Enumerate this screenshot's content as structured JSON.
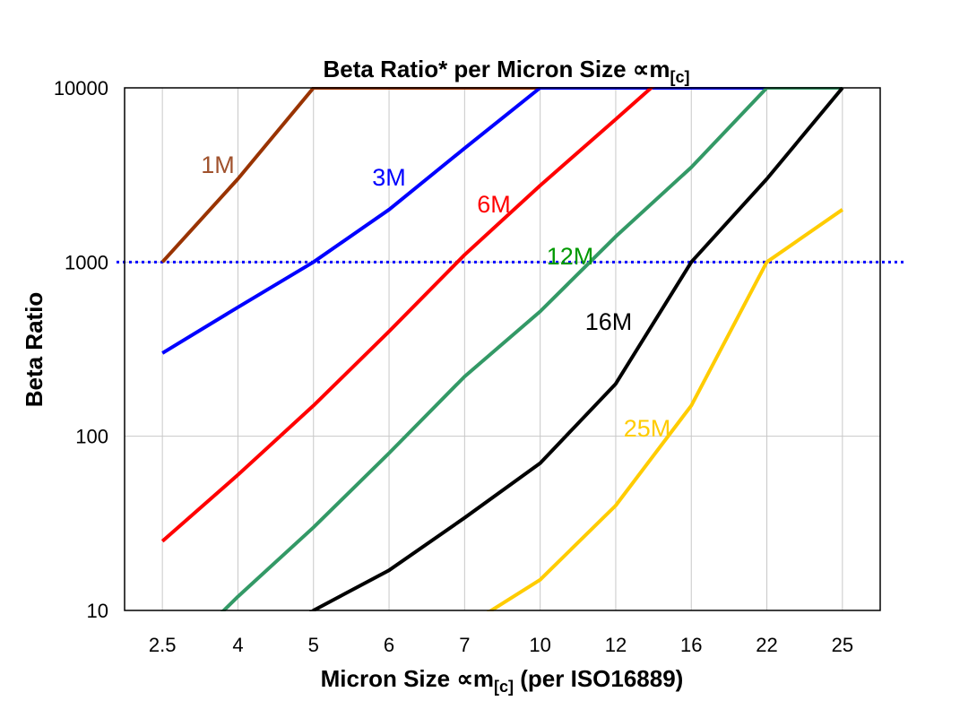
{
  "chart_data": {
    "type": "line",
    "title": "Beta Ratio* per Micron Size ∝m",
    "title_subscript": "[c]",
    "xlabel": "Micron Size ∝m",
    "xlabel_subscript": "[c]",
    "xlabel_suffix": " (per ISO16889)",
    "ylabel": "Beta Ratio",
    "y_scale": "log",
    "ylim": [
      10,
      10000
    ],
    "y_ticks": [
      "10",
      "100",
      "1000",
      "10000"
    ],
    "categories": [
      "2.5",
      "4",
      "5",
      "6",
      "7",
      "10",
      "12",
      "16",
      "22",
      "25"
    ],
    "grid": true,
    "reference_line": {
      "value": 1000,
      "style": "dotted",
      "color": "#0000FF"
    },
    "series": [
      {
        "name": "1M",
        "color": "#993300",
        "label_color": "#A0522D",
        "values": [
          1000,
          3000,
          10000,
          10000,
          10000,
          10000,
          null,
          null,
          null,
          null
        ]
      },
      {
        "name": "3M",
        "color": "#0000FF",
        "label_color": "#0000FF",
        "values": [
          300,
          550,
          1000,
          2000,
          4500,
          10000,
          10000,
          10000,
          10000,
          10000
        ]
      },
      {
        "name": "6M",
        "color": "#FF0000",
        "label_color": "#FF0000",
        "values": [
          25,
          60,
          150,
          400,
          1100,
          2750,
          6600,
          16000,
          null,
          null
        ]
      },
      {
        "name": "12M",
        "color": "#339966",
        "label_color": "#009900",
        "values": [
          4.5,
          12,
          30,
          80,
          220,
          520,
          1400,
          3500,
          10000,
          10000
        ]
      },
      {
        "name": "16M",
        "color": "#000000",
        "label_color": "#000000",
        "values": [
          null,
          5,
          10,
          17,
          34,
          70,
          200,
          1000,
          3000,
          10000
        ]
      },
      {
        "name": "25M",
        "color": "#FFCC00",
        "label_color": "#FFCC00",
        "values": [
          null,
          null,
          null,
          null,
          8,
          15,
          40,
          150,
          1000,
          2000
        ]
      }
    ]
  }
}
